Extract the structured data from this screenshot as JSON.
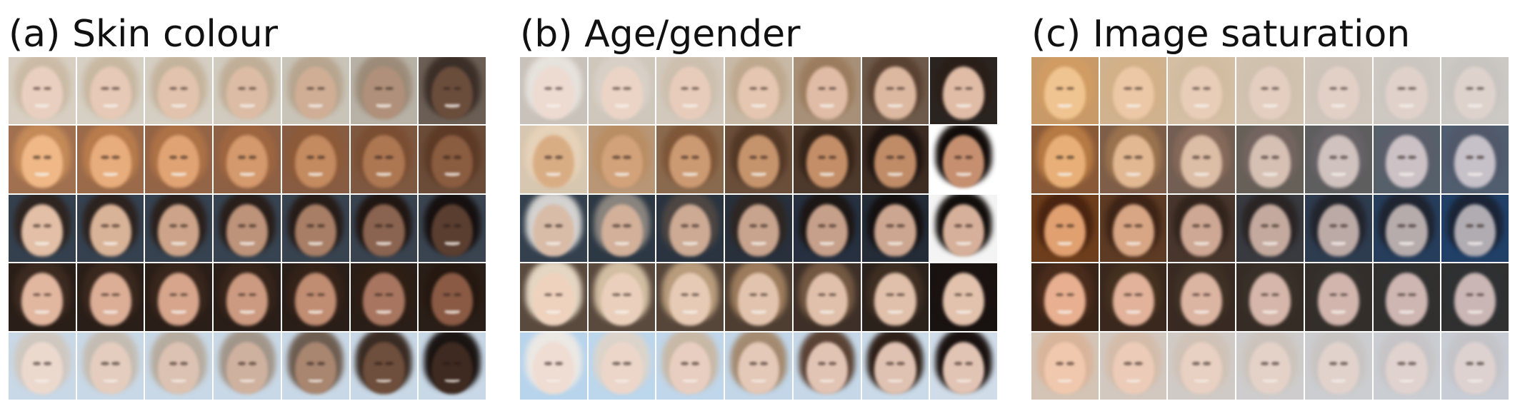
{
  "panels": [
    {
      "title": "(a) Skin colour",
      "rows": [
        {
          "bg": [
            "#d8cfc2",
            "#d6cfc3",
            "#d5cec3",
            "#d1cbbf",
            "#c9c4b8",
            "#b8b1a6",
            "#6b5f55"
          ],
          "hair": [
            "#cbbba6",
            "#c8b8a2",
            "#c5b49d",
            "#c0ae97",
            "#b7a58f",
            "#9c8b78",
            "#3b2f28"
          ],
          "skin": [
            "#e9cfbf",
            "#e6c9b6",
            "#e2c3ad",
            "#dcbca5",
            "#cfae95",
            "#b0907a",
            "#6b4d3c"
          ]
        },
        {
          "bg": [
            "#a07050",
            "#9a6a4a",
            "#946446",
            "#8e6044",
            "#885c42",
            "#7e5840",
            "#6a4c38"
          ],
          "hair": [
            "#c48a58",
            "#b87c4c",
            "#ad7246",
            "#9e6640",
            "#8c5a38",
            "#7a4e32",
            "#5c3a26"
          ],
          "skin": [
            "#efb886",
            "#e8ad7c",
            "#e0a474",
            "#d4996c",
            "#c48a60",
            "#ad7752",
            "#8a5c40"
          ]
        },
        {
          "bg": [
            "#34404e",
            "#35414f",
            "#364250",
            "#374350",
            "#384350",
            "#394350",
            "#3a4450"
          ],
          "hair": [
            "#2e2420",
            "#2c221e",
            "#2a201c",
            "#281e1a",
            "#261c18",
            "#201612",
            "#161010"
          ],
          "skin": [
            "#e2bfa6",
            "#d9b397",
            "#cda489",
            "#bd937a",
            "#a87e66",
            "#8a6450",
            "#5a3e30"
          ]
        },
        {
          "bg": [
            "#2a1e18",
            "#2a1e18",
            "#2a1e18",
            "#2a1e18",
            "#2a1e18",
            "#2a1e18",
            "#2a1e18"
          ],
          "hair": [
            "#3c2a20",
            "#3a281e",
            "#38261c",
            "#36241a",
            "#342218",
            "#2e1e14",
            "#241810"
          ],
          "skin": [
            "#e2b7a0",
            "#dcae96",
            "#d6a58c",
            "#cc9a80",
            "#c08c72",
            "#a87660",
            "#8a5a44"
          ]
        },
        {
          "bg": [
            "#c9d8e6",
            "#c9d8e6",
            "#c9d8e6",
            "#c9d8e6",
            "#c9d8e6",
            "#c9d8e6",
            "#c9d8e6"
          ],
          "hair": [
            "#cfc8c0",
            "#c4bcb2",
            "#b6ac9f",
            "#a2968a",
            "#6e5e52",
            "#3a2c24",
            "#1a1412"
          ],
          "skin": [
            "#ecd9ce",
            "#e4cdbf",
            "#dcc2b2",
            "#cfb19f",
            "#a88670",
            "#6e4e3c",
            "#3e2a20"
          ]
        }
      ]
    },
    {
      "title": "(b) Age/gender",
      "rows": [
        {
          "bg": [
            "#c9c2ba",
            "#cfc6bc",
            "#d2c8bc",
            "#c8b9a6",
            "#a89078",
            "#6e5a4a",
            "#2a2420"
          ],
          "hair": [
            "#e6e2dc",
            "#d8d0c6",
            "#cdbfae",
            "#bea88e",
            "#9c7c5e",
            "#5a4232",
            "#2a1e18"
          ],
          "skin": [
            "#eddad0",
            "#ebd4c6",
            "#e8ccbb",
            "#e5c6b1",
            "#e0bca6",
            "#dcb8a0",
            "#e0bca6"
          ]
        },
        {
          "bg": [
            "#d8c7b0",
            "#b89676",
            "#8a6a4e",
            "#6a4e3a",
            "#4e3a2c",
            "#3c2c22",
            "#ffffff"
          ],
          "hair": [
            "#e6d2b8",
            "#b98e64",
            "#7e5638",
            "#533826",
            "#362418",
            "#1e1410",
            "#120c0a"
          ],
          "skin": [
            "#d9ad84",
            "#d2a27a",
            "#cc9a72",
            "#c6946c",
            "#c48f68",
            "#c08c68",
            "#c69070"
          ]
        },
        {
          "bg": [
            "#34404e",
            "#2c3844",
            "#2a3440",
            "#28303c",
            "#263040",
            "#242c38",
            "#f4f4f4"
          ],
          "hair": [
            "#d4d2d0",
            "#8a847e",
            "#4e4642",
            "#2e2622",
            "#1c1614",
            "#141010",
            "#120e0c"
          ],
          "skin": [
            "#d8bca8",
            "#d2b09a",
            "#ccaa94",
            "#c8a48e",
            "#c6a08a",
            "#cca690",
            "#d6b09a"
          ]
        },
        {
          "bg": [
            "#5a4a3e",
            "#5a4a3e",
            "#56463a",
            "#4e3e32",
            "#3e3028",
            "#2c221c",
            "#181210"
          ],
          "hair": [
            "#e4d6c2",
            "#d2bea2",
            "#b89c7c",
            "#9c7c5c",
            "#735842",
            "#3e2e22",
            "#1a1210"
          ],
          "skin": [
            "#eed2be",
            "#ead0bc",
            "#e6cab5",
            "#e2c4ae",
            "#e0c0aa",
            "#e0c0aa",
            "#e2c2ac"
          ]
        },
        {
          "bg": [
            "#b8d4ec",
            "#bcd6ec",
            "#c0d6ea",
            "#c2d6e8",
            "#c6d8e8",
            "#cadae8",
            "#d0dce8"
          ],
          "hair": [
            "#ece8e4",
            "#dcd4ca",
            "#c8b8a6",
            "#a48a70",
            "#5a4234",
            "#2e2018",
            "#1a1210"
          ],
          "skin": [
            "#efdcd2",
            "#ecd6ca",
            "#e8cec0",
            "#e4c8b8",
            "#e2c4b4",
            "#e0c2b2",
            "#e2c4b4"
          ]
        }
      ]
    },
    {
      "title": "(c) Image saturation",
      "rows": [
        {
          "bg": [
            "#c89a68",
            "#d0b28e",
            "#d4bea4",
            "#d2c2b0",
            "#d0c6bc",
            "#cec8c2",
            "#ccc8c4"
          ],
          "hair": [
            "#d09c64",
            "#d2b088",
            "#d2bca0",
            "#d0c0ae",
            "#ceC4ba",
            "#ccc6c0",
            "#c8c4c0"
          ],
          "skin": [
            "#f0c490",
            "#ecc8a6",
            "#e8cdb8",
            "#e4cec0",
            "#e2d0c6",
            "#e0d2ca",
            "#ded2cc"
          ]
        },
        {
          "bg": [
            "#8a5a38",
            "#7e5e48",
            "#725e52",
            "#666058",
            "#5e5e5e",
            "#56606a",
            "#505e70"
          ],
          "hair": [
            "#b67a44",
            "#9a724e",
            "#85695a",
            "#746460",
            "#666266",
            "#5a5e6a",
            "#50586a"
          ],
          "skin": [
            "#e8b078",
            "#e2b892",
            "#dcbda6",
            "#d6c0b4",
            "#d0c2be",
            "#ccc2c6",
            "#c6c0c8"
          ]
        },
        {
          "bg": [
            "#6e3e1c",
            "#5c3a24",
            "#48362c",
            "#383a40",
            "#2e3c50",
            "#263e5c",
            "#204068"
          ],
          "hair": [
            "#4a2410",
            "#3e2416",
            "#32241c",
            "#2a2424",
            "#22242c",
            "#1e2430",
            "#1a2436"
          ],
          "skin": [
            "#e0a070",
            "#d8a684",
            "#cea894",
            "#c4aa9e",
            "#bcaaa6",
            "#b6acac",
            "#b0acb2"
          ]
        },
        {
          "bg": [
            "#3a2418",
            "#3a281e",
            "#382a22",
            "#362c26",
            "#342e2a",
            "#32302e",
            "#303030"
          ],
          "hair": [
            "#4a2c1c",
            "#44301e",
            "#3e3024",
            "#383028",
            "#34302c",
            "#303030",
            "#2e3032"
          ],
          "skin": [
            "#e8b090",
            "#e2b29a",
            "#dcb4a2",
            "#d6b6aa",
            "#d2b6ae",
            "#ceb6b2",
            "#cab6b4"
          ]
        },
        {
          "bg": [
            "#d4c4b6",
            "#d2c8c0",
            "#d0cac6",
            "#cecccc",
            "#cccdd0",
            "#cacdd2",
            "#c8ccd4"
          ],
          "hair": [
            "#d8b49a",
            "#d4bcaa",
            "#d0c2b6",
            "#ccc4bc",
            "#c8c4c2",
            "#c6c4c6",
            "#c4c4c8"
          ],
          "skin": [
            "#f0c8ae",
            "#ecccb8",
            "#e8d0c2",
            "#e4d2c8",
            "#e2d2cc",
            "#e0d2ce",
            "#ded2d0"
          ]
        }
      ]
    }
  ],
  "mouth_open_rows": [
    0,
    1,
    2,
    3,
    4
  ]
}
